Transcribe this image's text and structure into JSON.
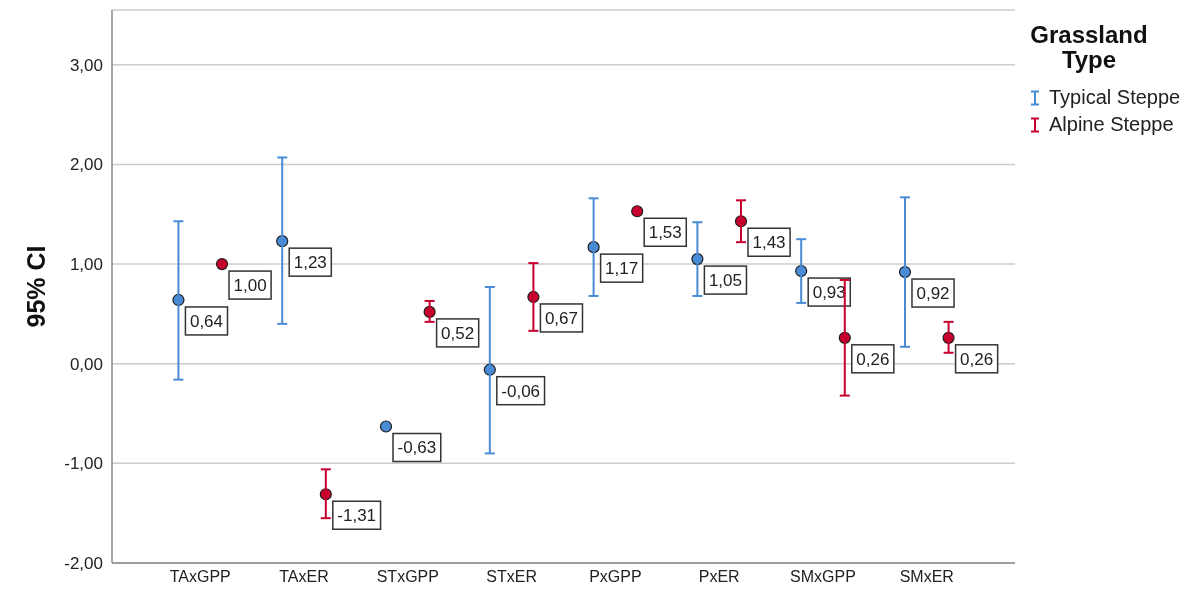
{
  "chart_data": {
    "type": "scatter",
    "ylabel": "95% CI",
    "legend_title": "Grassland Type",
    "categories": [
      "TAxGPP",
      "TAxER",
      "STxGPP",
      "STxER",
      "PxGPP",
      "PxER",
      "SMxGPP",
      "SMxER"
    ],
    "series": [
      {
        "name": "Typical Steppe",
        "color": "#4a8bd6",
        "values": [
          0.64,
          1.23,
          -0.63,
          -0.06,
          1.17,
          1.05,
          0.93,
          0.92
        ],
        "errors": [
          [
            -0.16,
            1.43
          ],
          [
            0.4,
            2.07
          ],
          null,
          [
            -0.9,
            0.77
          ],
          [
            0.68,
            1.66
          ],
          [
            0.68,
            1.42
          ],
          [
            0.61,
            1.25
          ],
          [
            0.17,
            1.67
          ]
        ],
        "value_labels": [
          "0,64",
          "1,23",
          "-0,63",
          "-0,06",
          "1,17",
          "1,05",
          "0,93",
          "0,92"
        ]
      },
      {
        "name": "Alpine Steppe",
        "color": "#c8002d",
        "values": [
          1.0,
          -1.31,
          0.52,
          0.67,
          1.53,
          1.43,
          0.26,
          0.26
        ],
        "errors": [
          null,
          [
            -1.55,
            -1.06
          ],
          [
            0.42,
            0.63
          ],
          [
            0.33,
            1.01
          ],
          null,
          [
            1.22,
            1.64
          ],
          [
            -0.32,
            0.84
          ],
          [
            0.11,
            0.42
          ]
        ],
        "value_labels": [
          "1,00",
          "-1,31",
          "0,52",
          "0,67",
          "1,53",
          "1,43",
          "0,26",
          "0,26"
        ]
      }
    ],
    "ylim": [
      -2,
      3.55
    ],
    "yticks": [
      {
        "value": -2,
        "label": "-2,00"
      },
      {
        "value": -1,
        "label": "-1,00"
      },
      {
        "value": 0,
        "label": "0,00"
      },
      {
        "value": 1,
        "label": "1,00"
      },
      {
        "value": 2,
        "label": "2,00"
      },
      {
        "value": 3,
        "label": "3,00"
      }
    ],
    "grid": "y",
    "legend": "top right",
    "marker": "circle"
  }
}
